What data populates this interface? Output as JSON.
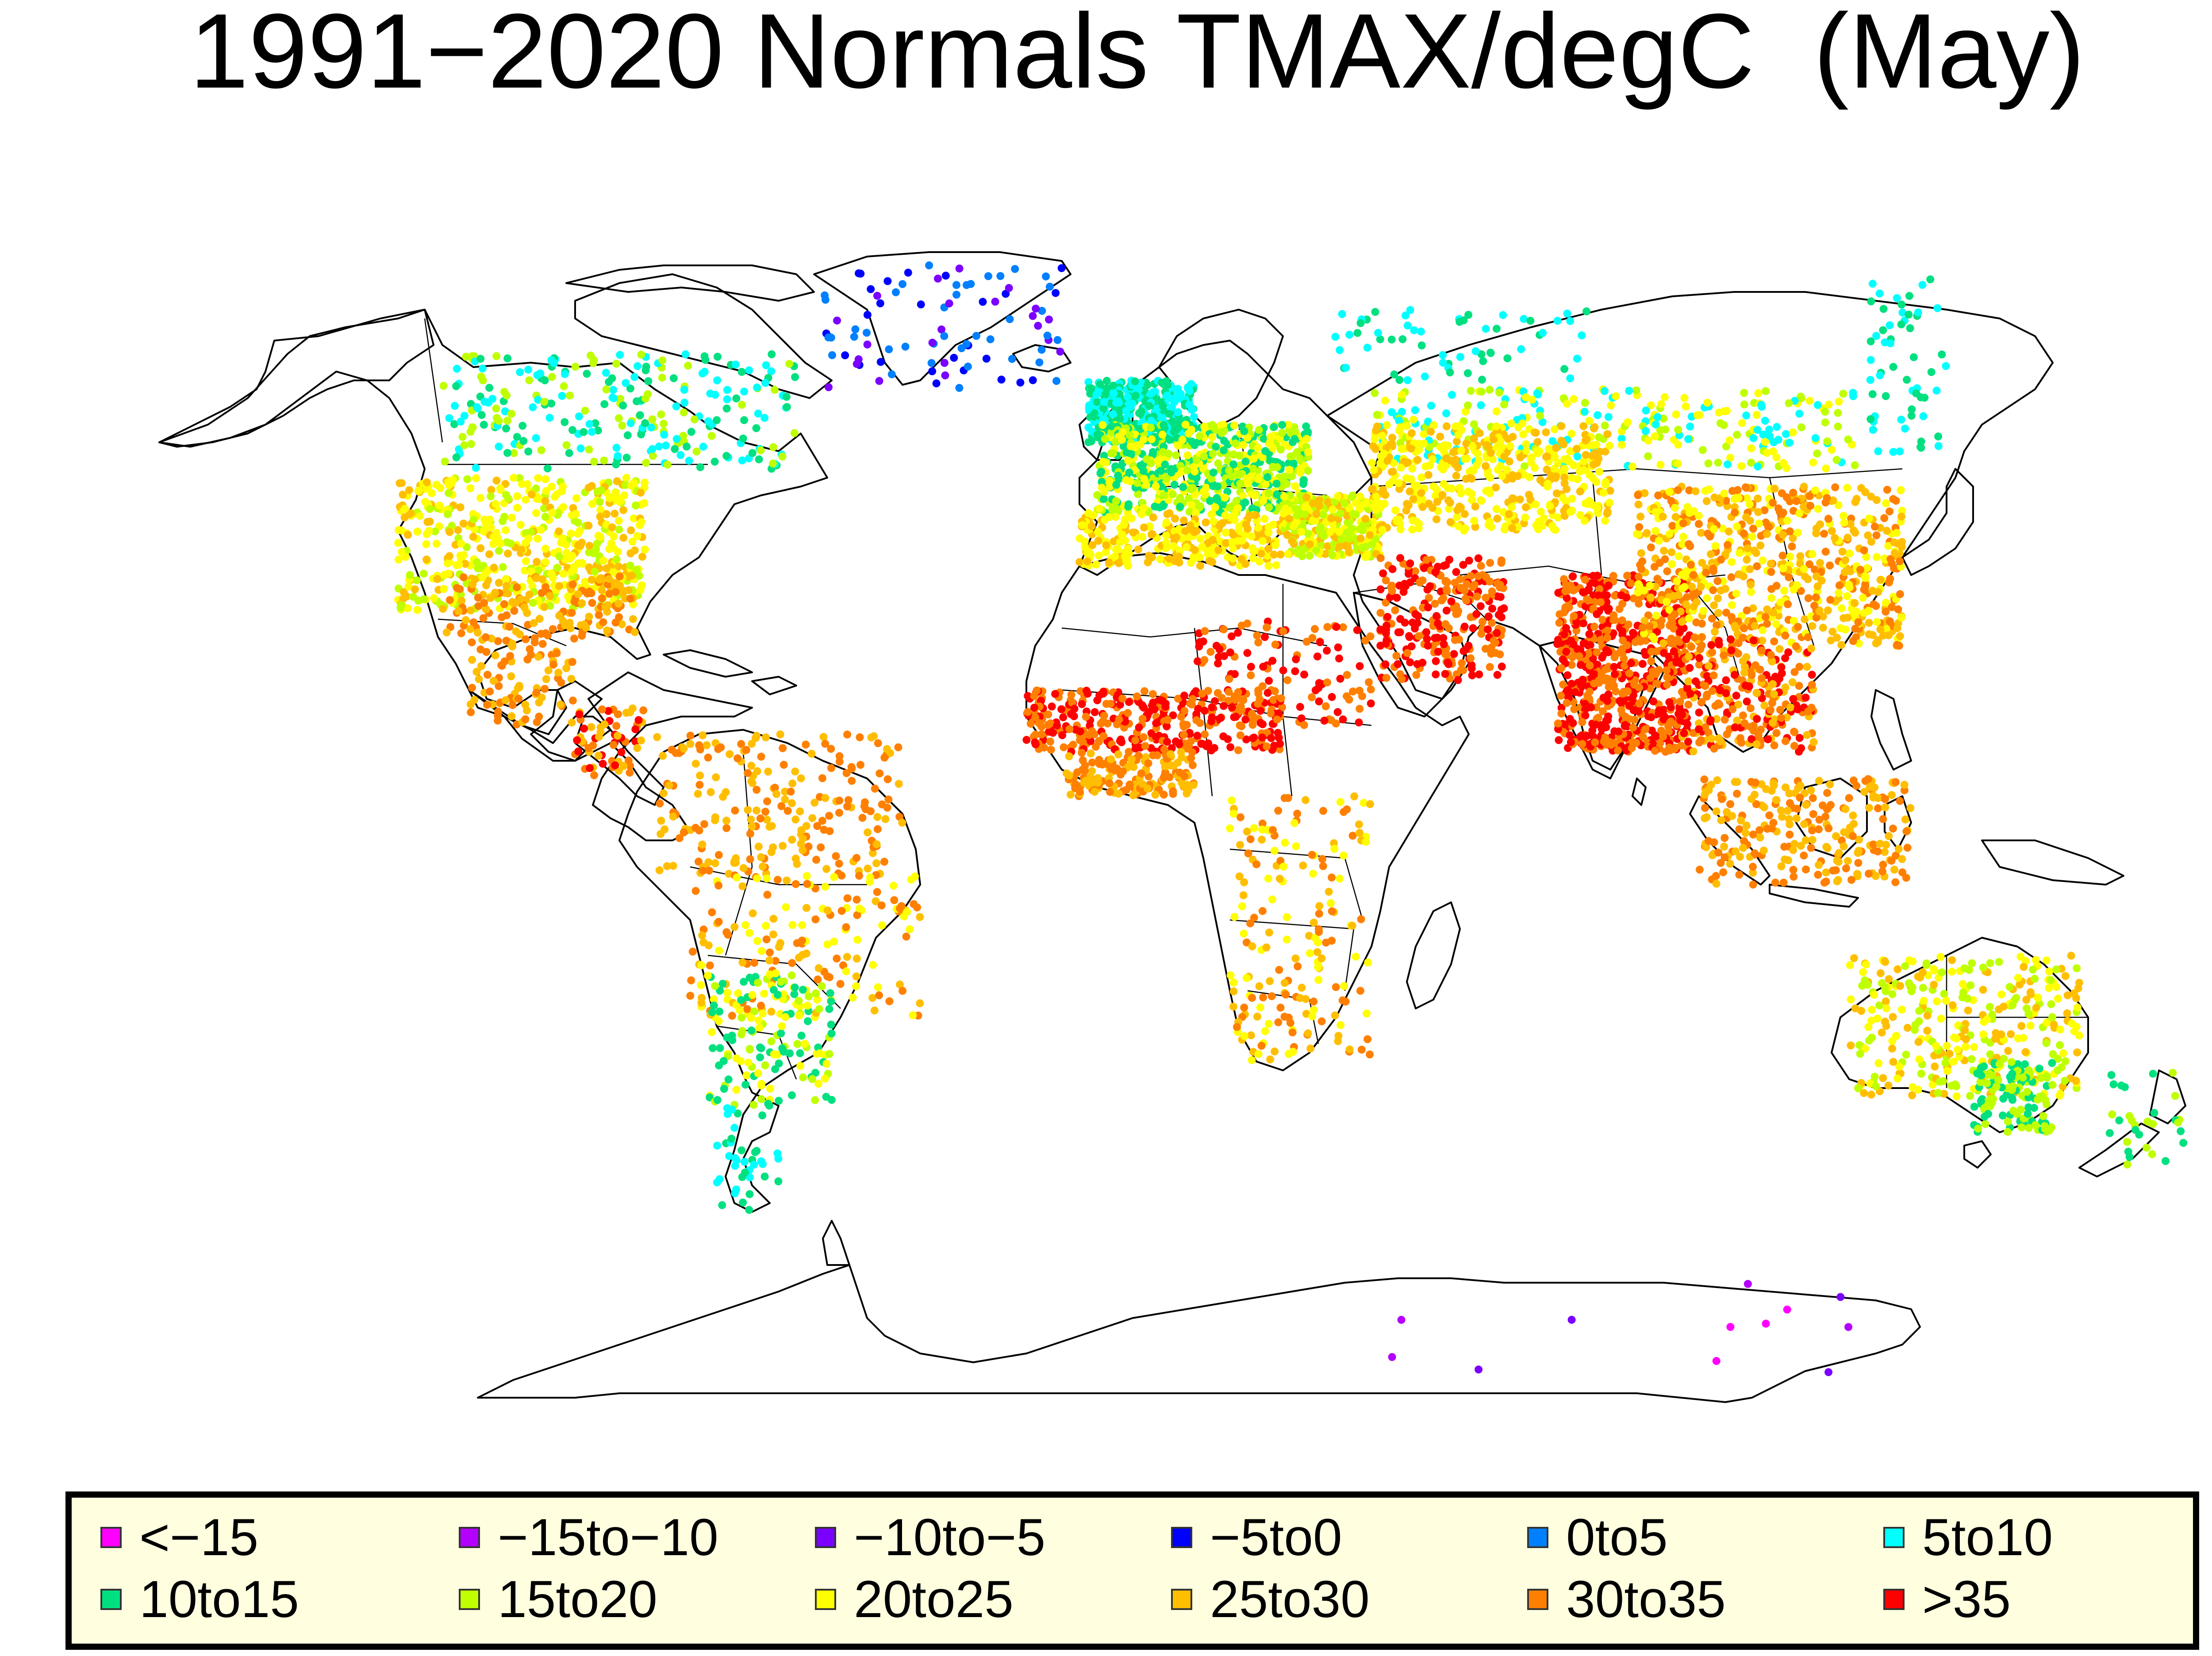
{
  "title": "1991−2020 Normals TMAX/degC  (May)",
  "legend": [
    {
      "label": "<−15",
      "color": "#ff00ff"
    },
    {
      "label": "−15to−10",
      "color": "#b300ff"
    },
    {
      "label": "−10to−5",
      "color": "#7a00ff"
    },
    {
      "label": "−5to0",
      "color": "#0000ff"
    },
    {
      "label": "0to5",
      "color": "#0080ff"
    },
    {
      "label": "5to10",
      "color": "#00ffff"
    },
    {
      "label": "10to15",
      "color": "#00e080"
    },
    {
      "label": "15to20",
      "color": "#bfff00"
    },
    {
      "label": "20to25",
      "color": "#ffff00"
    },
    {
      "label": "25to30",
      "color": "#ffbf00"
    },
    {
      "label": "30to35",
      "color": "#ff8000"
    },
    {
      "label": ">35",
      "color": "#ff0000"
    }
  ]
}
